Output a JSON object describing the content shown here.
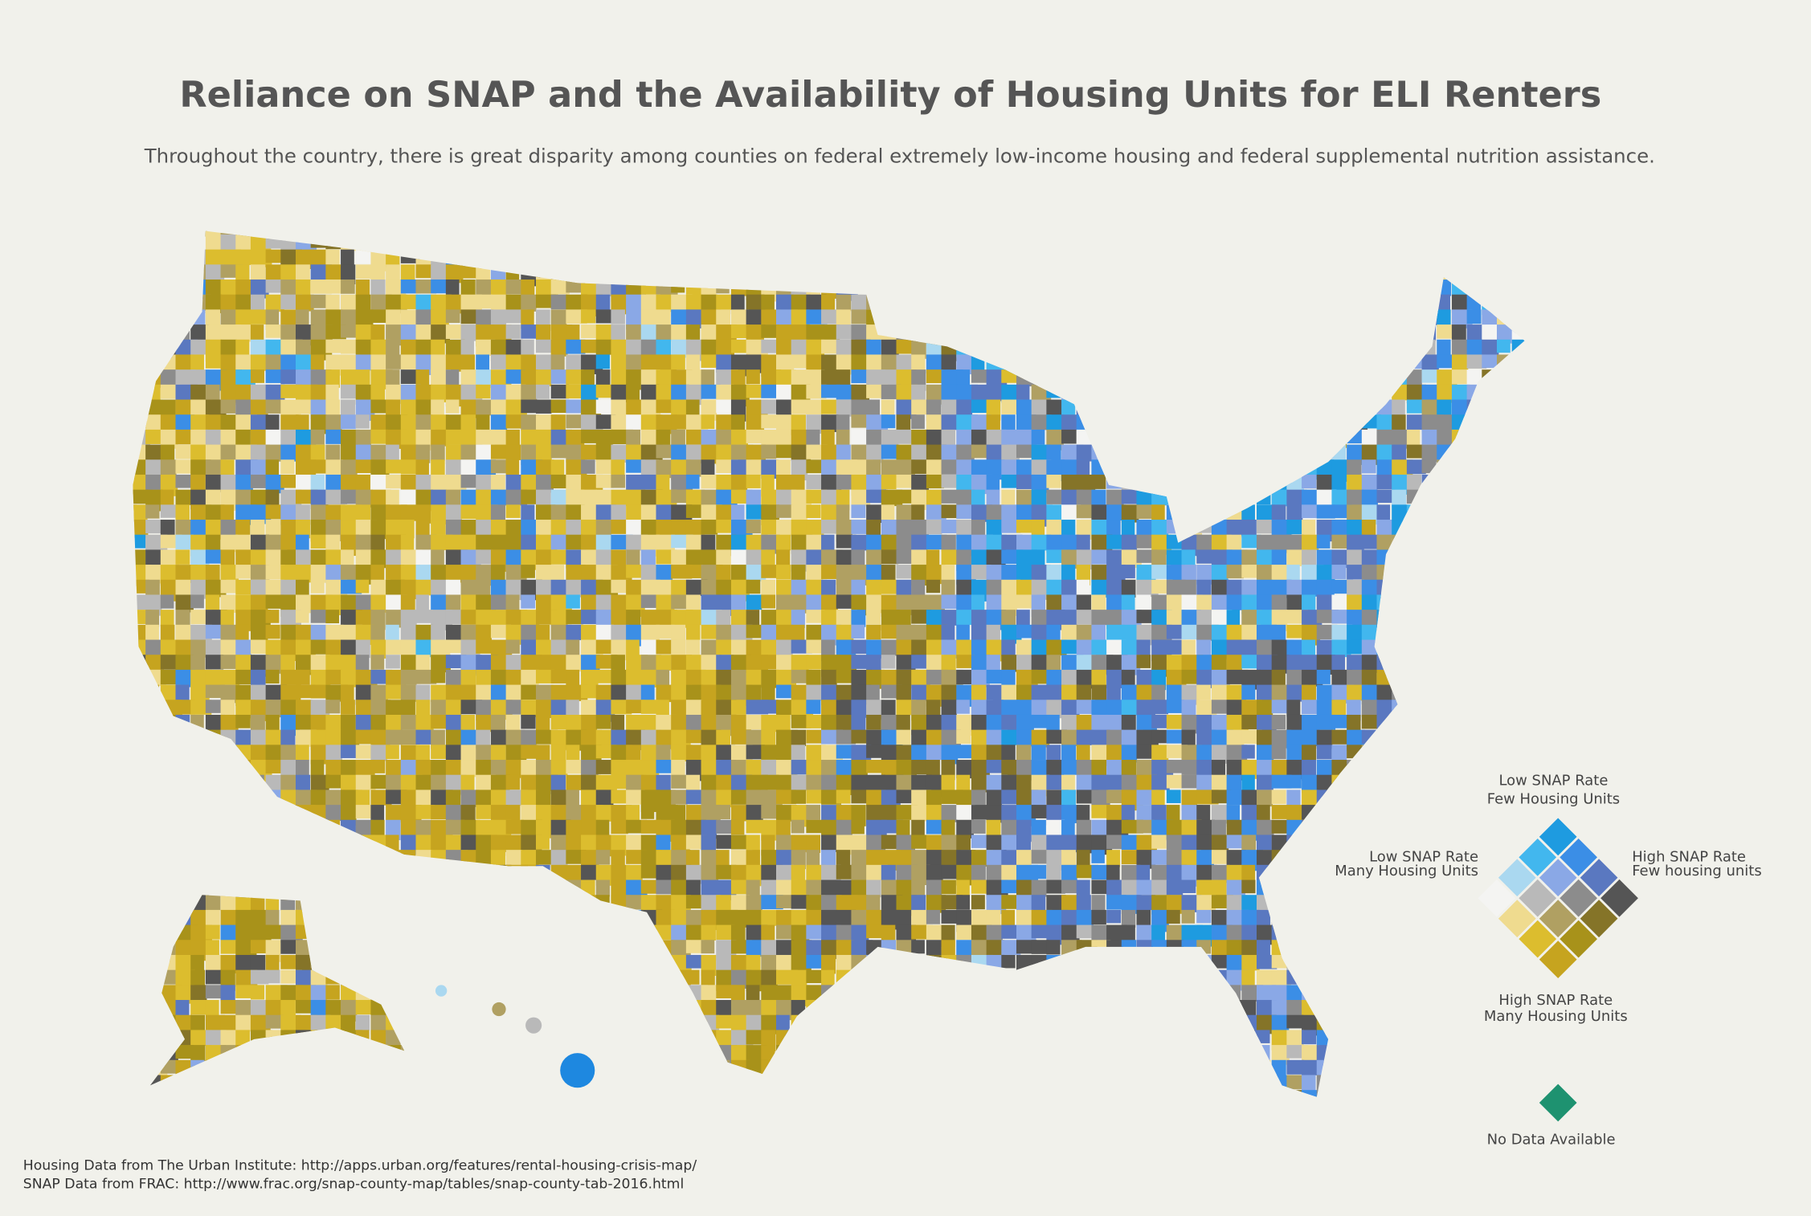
{
  "header": {
    "title": "Reliance on SNAP and the Availability of Housing Units for ELI Renters",
    "subtitle": "Throughout the country, there is great disparity among counties on federal extremely low-income housing and federal supplemental nutrition assistance."
  },
  "legend": {
    "palette": [
      [
        "#1e9be0",
        "#42b7ee",
        "#aad8f0",
        "#f4f4f2"
      ],
      [
        "#3b8ee6",
        "#8aa8e6",
        "#b9b9b9",
        "#efdb8f"
      ],
      [
        "#5a78c0",
        "#8c8c8c",
        "#b0a062",
        "#dcbd2e"
      ],
      [
        "#555555",
        "#857428",
        "#a8921a",
        "#c6a41f"
      ]
    ],
    "top": [
      "Low SNAP Rate",
      "Few Housing Units"
    ],
    "left": [
      "Low SNAP Rate",
      "Many Housing Units"
    ],
    "right": [
      "High SNAP Rate",
      "Few housing units"
    ],
    "bottom": [
      "High SNAP Rate",
      "Many Housing Units"
    ],
    "no_data": {
      "label": "No Data Available",
      "color": "#1e9270"
    }
  },
  "sources": [
    "Housing Data from The Urban Institute: http://apps.urban.org/features/rental-housing-crisis-map/",
    "SNAP Data from FRAC: http://www.frac.org/snap-county-map/tables/snap-county-tab-2016.html"
  ]
}
